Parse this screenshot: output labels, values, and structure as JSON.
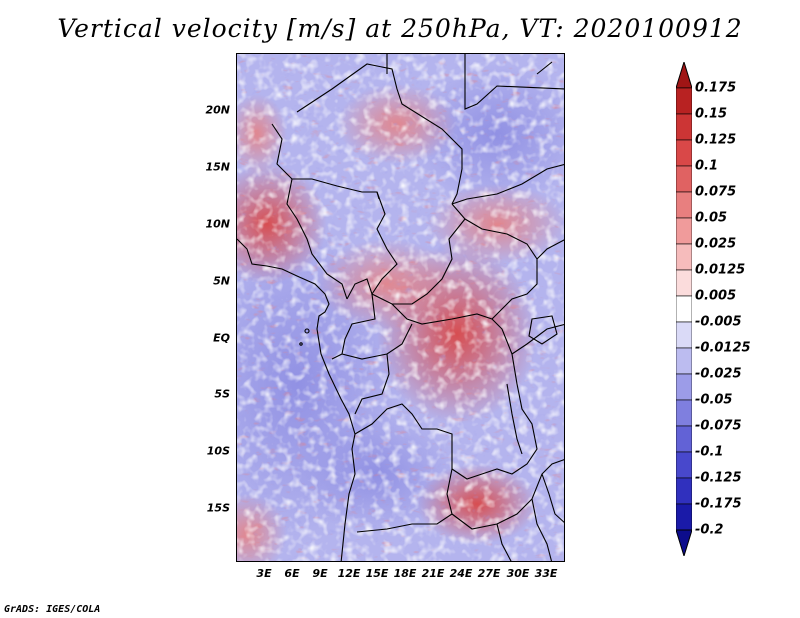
{
  "title": "Vertical velocity [m/s] at 250hPa, VT: 2020100912",
  "credit": "GrADS: IGES/COLA",
  "map": {
    "variable": "Vertical velocity",
    "units": "m/s",
    "level": "250hPa",
    "valid_time": "2020100912",
    "lat_labels": [
      "20N",
      "15N",
      "10N",
      "5N",
      "EQ",
      "5S",
      "10S",
      "15S"
    ],
    "lon_labels": [
      "3E",
      "6E",
      "9E",
      "12E",
      "15E",
      "18E",
      "21E",
      "24E",
      "27E",
      "30E",
      "33E"
    ]
  },
  "colorbar": {
    "labels": [
      "0.175",
      "0.15",
      "0.125",
      "0.1",
      "0.075",
      "0.05",
      "0.025",
      "0.0125",
      "0.005",
      "-0.005",
      "-0.0125",
      "-0.025",
      "-0.05",
      "-0.075",
      "-0.1",
      "-0.125",
      "-0.175",
      "-0.2"
    ],
    "colors": [
      "#a01515",
      "#b82222",
      "#cc3535",
      "#d94848",
      "#e06262",
      "#e87f7f",
      "#f09b9b",
      "#f6bcbc",
      "#fbdcdc",
      "#ffffff",
      "#dadaf7",
      "#bcbcf0",
      "#9c9ce8",
      "#7f7fdf",
      "#6262d6",
      "#4848cc",
      "#3030be",
      "#1a1aa8",
      "#0c0c8c"
    ],
    "top_arrow_color": "#a01515",
    "bottom_arrow_color": "#0c0c8c"
  }
}
